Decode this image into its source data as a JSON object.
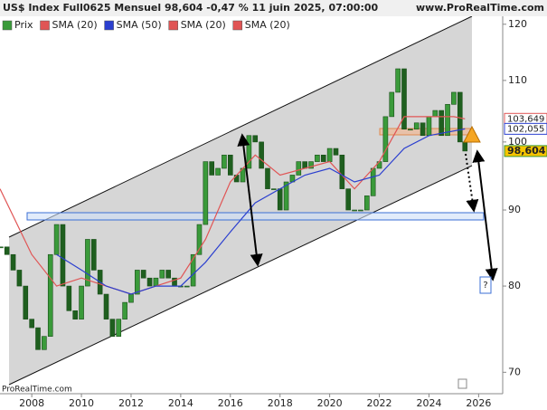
{
  "chart_data": {
    "type": "candlestick",
    "title": "US$ Index Full0625 Mensuel 98,604 -0,47 % 11 juin 2025, 07:00:00",
    "source": "www.ProRealTime.com",
    "watermark": "ProRealTime.com",
    "legend": [
      {
        "name": "Prix",
        "color": "#3a9a3a"
      },
      {
        "name": "SMA (20)",
        "color": "#e05555"
      },
      {
        "name": "SMA (50)",
        "color": "#2b3fcf"
      },
      {
        "name": "SMA (20)",
        "color": "#e05555"
      },
      {
        "name": "SMA (20)",
        "color": "#e05555"
      }
    ],
    "series": [
      {
        "color": "#3a9a3a",
        "x": [
          2006.75,
          2007.0,
          2007.25,
          2007.5,
          2007.75,
          2008.0,
          2008.25,
          2008.5,
          2008.75,
          2009.0,
          2009.25,
          2009.5,
          2009.75,
          2010.0,
          2010.25,
          2010.5,
          2010.75,
          2011.0,
          2011.25,
          2011.5,
          2011.75,
          2012.0,
          2012.25,
          2012.5,
          2012.75,
          2013.0,
          2013.25,
          2013.5,
          2013.75,
          2014.0,
          2014.25,
          2014.5,
          2014.75,
          2015.0,
          2015.25,
          2015.5,
          2015.75,
          2016.0,
          2016.25,
          2016.5,
          2016.75,
          2017.0,
          2017.25,
          2017.5,
          2017.75,
          2018.0,
          2018.25,
          2018.5,
          2018.75,
          2019.0,
          2019.25,
          2019.5,
          2019.75,
          2020.0,
          2020.25,
          2020.5,
          2020.75,
          2021.0,
          2021.25,
          2021.5,
          2021.75,
          2022.0,
          2022.25,
          2022.5,
          2022.75,
          2023.0,
          2023.25,
          2023.5,
          2023.75,
          2024.0,
          2024.25,
          2024.5,
          2024.75,
          2025.0,
          2025.25,
          2025.45
        ],
        "values": [
          85,
          84,
          82,
          80,
          76,
          75,
          72.5,
          74,
          84,
          88,
          80,
          77,
          76,
          80,
          86,
          82,
          79,
          76,
          74,
          76,
          78,
          79,
          82,
          81,
          80,
          81,
          82,
          81,
          80,
          80,
          80,
          84,
          88,
          97,
          95,
          96,
          98,
          95,
          94,
          96,
          101,
          100,
          96,
          93,
          93,
          90,
          94,
          95,
          97,
          96,
          97,
          98,
          97,
          99,
          98,
          93,
          90,
          90,
          90,
          92,
          96,
          97,
          104,
          108,
          112,
          102,
          102,
          103,
          101,
          104,
          105,
          101,
          106,
          108,
          100,
          98.604
        ],
        "last_label": "98,604"
      },
      {
        "color": "#e05555",
        "x": [
          2006.72,
          2008,
          2009,
          2010,
          2011,
          2012,
          2013,
          2014,
          2015,
          2016,
          2017,
          2018,
          2019,
          2020,
          2021,
          2022,
          2023,
          2024,
          2025,
          2025.45
        ],
        "values": [
          93,
          84,
          80,
          81,
          80,
          79,
          80,
          81,
          86,
          94,
          98,
          95,
          96,
          97,
          93,
          97,
          104,
          104,
          104,
          103.649
        ],
        "last_label": "103,649"
      },
      {
        "color": "#2b3fcf",
        "x": [
          2009,
          2010,
          2011,
          2012,
          2013,
          2014,
          2015,
          2016,
          2017,
          2018,
          2019,
          2020,
          2021,
          2022,
          2023,
          2024,
          2025.45
        ],
        "values": [
          84,
          82,
          80,
          79,
          80,
          80,
          83,
          87,
          91,
          93,
          95,
          96,
          94,
          95,
          99,
          101,
          102.055
        ],
        "last_label": "102,055"
      }
    ],
    "xlim": [
      2006.72,
      2026.97
    ],
    "xticks": [
      2008,
      2010,
      2012,
      2014,
      2016,
      2018,
      2020,
      2022,
      2024,
      2026
    ],
    "ylim": [
      68,
      122
    ],
    "yticks": [
      70,
      80,
      90,
      100,
      110,
      120
    ],
    "log_scale": true
  }
}
